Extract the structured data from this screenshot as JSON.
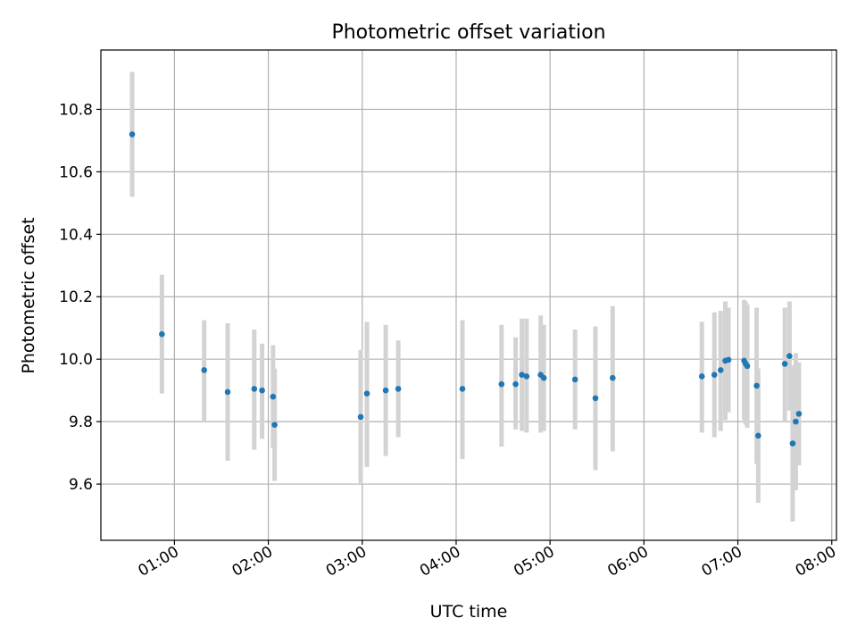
{
  "chart_data": {
    "type": "scatter",
    "title": "Photometric offset variation",
    "xlabel": "UTC time",
    "ylabel": "Photometric offset",
    "xlim": [
      "00:13",
      "08:03"
    ],
    "ylim": [
      9.42,
      10.99
    ],
    "x_ticks": [
      "01:00",
      "02:00",
      "03:00",
      "04:00",
      "05:00",
      "06:00",
      "07:00",
      "08:00"
    ],
    "y_ticks": [
      "9.6",
      "9.8",
      "10.0",
      "10.2",
      "10.4",
      "10.6",
      "10.8"
    ],
    "grid": true,
    "colors": {
      "marker": "#1f77b4",
      "errorbar": "#d3d3d3",
      "grid": "#b0b0b0"
    },
    "points": [
      {
        "t": "00:33",
        "y": 10.72,
        "lo": 10.52,
        "hi": 10.92
      },
      {
        "t": "00:52",
        "y": 10.08,
        "lo": 9.89,
        "hi": 10.27
      },
      {
        "t": "01:19",
        "y": 9.965,
        "lo": 9.8,
        "hi": 10.125
      },
      {
        "t": "01:34",
        "y": 9.895,
        "lo": 9.675,
        "hi": 10.115
      },
      {
        "t": "01:51",
        "y": 9.905,
        "lo": 9.71,
        "hi": 10.095
      },
      {
        "t": "01:56",
        "y": 9.9,
        "lo": 9.745,
        "hi": 10.05
      },
      {
        "t": "02:03",
        "y": 9.88,
        "lo": 9.715,
        "hi": 10.045
      },
      {
        "t": "02:04",
        "y": 9.79,
        "lo": 9.61,
        "hi": 9.97
      },
      {
        "t": "02:59",
        "y": 9.815,
        "lo": 9.6,
        "hi": 10.03
      },
      {
        "t": "03:03",
        "y": 9.89,
        "lo": 9.655,
        "hi": 10.12
      },
      {
        "t": "03:15",
        "y": 9.9,
        "lo": 9.69,
        "hi": 10.11
      },
      {
        "t": "03:23",
        "y": 9.905,
        "lo": 9.75,
        "hi": 10.06
      },
      {
        "t": "04:04",
        "y": 9.905,
        "lo": 9.68,
        "hi": 10.125
      },
      {
        "t": "04:29",
        "y": 9.92,
        "lo": 9.72,
        "hi": 10.11
      },
      {
        "t": "04:38",
        "y": 9.92,
        "lo": 9.775,
        "hi": 10.07
      },
      {
        "t": "04:42",
        "y": 9.95,
        "lo": 9.77,
        "hi": 10.13
      },
      {
        "t": "04:45",
        "y": 9.945,
        "lo": 9.765,
        "hi": 10.13
      },
      {
        "t": "04:54",
        "y": 9.95,
        "lo": 9.765,
        "hi": 10.14
      },
      {
        "t": "04:56",
        "y": 9.94,
        "lo": 9.77,
        "hi": 10.11
      },
      {
        "t": "05:16",
        "y": 9.935,
        "lo": 9.775,
        "hi": 10.095
      },
      {
        "t": "05:29",
        "y": 9.875,
        "lo": 9.645,
        "hi": 10.105
      },
      {
        "t": "05:40",
        "y": 9.94,
        "lo": 9.705,
        "hi": 10.17
      },
      {
        "t": "06:37",
        "y": 9.945,
        "lo": 9.765,
        "hi": 10.12
      },
      {
        "t": "06:45",
        "y": 9.95,
        "lo": 9.75,
        "hi": 10.15
      },
      {
        "t": "06:49",
        "y": 9.965,
        "lo": 9.77,
        "hi": 10.155
      },
      {
        "t": "06:52",
        "y": 9.995,
        "lo": 9.805,
        "hi": 10.185
      },
      {
        "t": "06:54",
        "y": 9.998,
        "lo": 9.83,
        "hi": 10.165
      },
      {
        "t": "07:04",
        "y": 9.995,
        "lo": 9.805,
        "hi": 10.19
      },
      {
        "t": "07:05",
        "y": 9.985,
        "lo": 9.79,
        "hi": 10.185
      },
      {
        "t": "07:06",
        "y": 9.978,
        "lo": 9.78,
        "hi": 10.175
      },
      {
        "t": "07:12",
        "y": 9.915,
        "lo": 9.665,
        "hi": 10.165
      },
      {
        "t": "07:13",
        "y": 9.755,
        "lo": 9.54,
        "hi": 9.97
      },
      {
        "t": "07:30",
        "y": 9.985,
        "lo": 9.8,
        "hi": 10.165
      },
      {
        "t": "07:33",
        "y": 10.01,
        "lo": 9.835,
        "hi": 10.185
      },
      {
        "t": "07:35",
        "y": 9.73,
        "lo": 9.48,
        "hi": 9.98
      },
      {
        "t": "07:37",
        "y": 9.8,
        "lo": 9.58,
        "hi": 10.02
      },
      {
        "t": "07:39",
        "y": 9.825,
        "lo": 9.66,
        "hi": 9.99
      }
    ]
  }
}
